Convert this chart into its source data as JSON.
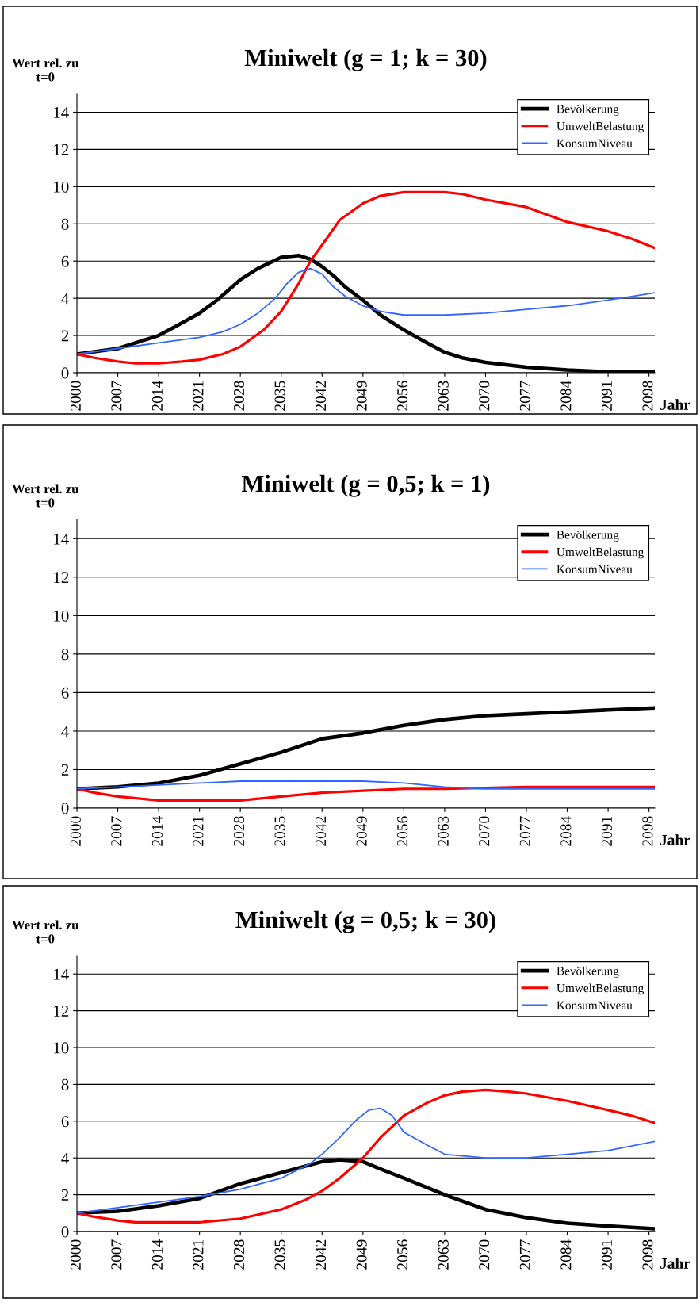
{
  "chart_data": [
    {
      "type": "line",
      "title": "Miniwelt (g = 1; k = 30)",
      "ylabel": "Wert rel. zu\nt=0",
      "xlabel": "Jahr",
      "xlim": [
        2000,
        2099
      ],
      "xticks": [
        2000,
        2007,
        2014,
        2021,
        2028,
        2035,
        2042,
        2049,
        2056,
        2063,
        2070,
        2077,
        2084,
        2091,
        2098
      ],
      "ylim": [
        0,
        15
      ],
      "yticks": [
        0,
        2,
        4,
        6,
        8,
        10,
        12,
        14
      ],
      "grid": "y",
      "legend": "top right",
      "marker": "none",
      "line_style": "solid",
      "series": [
        {
          "name": "Bevölkerung",
          "color": "#000000",
          "x": [
            2000,
            2007,
            2014,
            2017,
            2021,
            2024,
            2028,
            2031,
            2035,
            2038,
            2040,
            2042,
            2044,
            2046,
            2049,
            2052,
            2056,
            2060,
            2063,
            2066,
            2070,
            2077,
            2084,
            2091,
            2099
          ],
          "values": [
            1,
            1.3,
            2.0,
            2.5,
            3.2,
            3.9,
            5.0,
            5.6,
            6.2,
            6.3,
            6.1,
            5.7,
            5.2,
            4.6,
            3.9,
            3.1,
            2.3,
            1.6,
            1.1,
            0.8,
            0.55,
            0.3,
            0.15,
            0.05,
            0.05
          ]
        },
        {
          "name": "UmweltBelastung",
          "color": "#ff0000",
          "x": [
            2000,
            2003,
            2007,
            2010,
            2014,
            2018,
            2021,
            2025,
            2028,
            2032,
            2035,
            2038,
            2040,
            2043,
            2045,
            2049,
            2052,
            2056,
            2063,
            2066,
            2070,
            2077,
            2084,
            2091,
            2095,
            2099
          ],
          "values": [
            1,
            0.8,
            0.6,
            0.5,
            0.5,
            0.6,
            0.7,
            1.0,
            1.4,
            2.3,
            3.3,
            4.8,
            6.0,
            7.3,
            8.2,
            9.1,
            9.5,
            9.7,
            9.7,
            9.6,
            9.3,
            8.9,
            8.1,
            7.6,
            7.2,
            6.7
          ]
        },
        {
          "name": "KonsumNiveau",
          "color": "#3366ff",
          "x": [
            2000,
            2007,
            2014,
            2021,
            2025,
            2028,
            2031,
            2034,
            2036,
            2038,
            2040,
            2042,
            2044,
            2046,
            2049,
            2052,
            2056,
            2063,
            2070,
            2077,
            2084,
            2091,
            2095,
            2099
          ],
          "values": [
            1,
            1.3,
            1.6,
            1.9,
            2.2,
            2.6,
            3.2,
            4.0,
            4.8,
            5.4,
            5.6,
            5.3,
            4.6,
            4.1,
            3.6,
            3.3,
            3.1,
            3.1,
            3.2,
            3.4,
            3.6,
            3.9,
            4.1,
            4.3
          ]
        }
      ]
    },
    {
      "type": "line",
      "title": "Miniwelt (g = 0,5; k = 1)",
      "ylabel": "Wert rel. zu\nt=0",
      "xlabel": "Jahr",
      "xlim": [
        2000,
        2099
      ],
      "xticks": [
        2000,
        2007,
        2014,
        2021,
        2028,
        2035,
        2042,
        2049,
        2056,
        2063,
        2070,
        2077,
        2084,
        2091,
        2098
      ],
      "ylim": [
        0,
        15
      ],
      "yticks": [
        0,
        2,
        4,
        6,
        8,
        10,
        12,
        14
      ],
      "grid": "y",
      "legend": "top right",
      "marker": "none",
      "line_style": "solid",
      "series": [
        {
          "name": "Bevölkerung",
          "color": "#000000",
          "x": [
            2000,
            2007,
            2014,
            2021,
            2028,
            2035,
            2042,
            2049,
            2056,
            2063,
            2070,
            2077,
            2084,
            2091,
            2099
          ],
          "values": [
            1,
            1.1,
            1.3,
            1.7,
            2.3,
            2.9,
            3.6,
            3.9,
            4.3,
            4.6,
            4.8,
            4.9,
            5.0,
            5.1,
            5.2
          ]
        },
        {
          "name": "UmweltBelastung",
          "color": "#ff0000",
          "x": [
            2000,
            2003,
            2007,
            2014,
            2028,
            2035,
            2042,
            2049,
            2056,
            2063,
            2077,
            2099
          ],
          "values": [
            1,
            0.8,
            0.6,
            0.4,
            0.4,
            0.6,
            0.8,
            0.9,
            1.0,
            1.0,
            1.1,
            1.1
          ]
        },
        {
          "name": "KonsumNiveau",
          "color": "#3366ff",
          "x": [
            2000,
            2007,
            2014,
            2021,
            2028,
            2035,
            2042,
            2049,
            2056,
            2063,
            2070,
            2077,
            2099
          ],
          "values": [
            1,
            1.1,
            1.2,
            1.3,
            1.4,
            1.4,
            1.4,
            1.4,
            1.3,
            1.1,
            1.0,
            1.0,
            1.0
          ]
        }
      ]
    },
    {
      "type": "line",
      "title": "Miniwelt (g = 0,5; k = 30)",
      "ylabel": "Wert rel. zu\nt=0",
      "xlabel": "Jahr",
      "xlim": [
        2000,
        2099
      ],
      "xticks": [
        2000,
        2007,
        2014,
        2021,
        2028,
        2035,
        2042,
        2049,
        2056,
        2063,
        2070,
        2077,
        2084,
        2091,
        2098
      ],
      "ylim": [
        0,
        15
      ],
      "yticks": [
        0,
        2,
        4,
        6,
        8,
        10,
        12,
        14
      ],
      "grid": "y",
      "legend": "top right",
      "marker": "none",
      "line_style": "solid",
      "series": [
        {
          "name": "Bevölkerung",
          "color": "#000000",
          "x": [
            2000,
            2007,
            2014,
            2021,
            2028,
            2035,
            2042,
            2045,
            2049,
            2052,
            2056,
            2063,
            2070,
            2077,
            2084,
            2091,
            2099
          ],
          "values": [
            1,
            1.1,
            1.4,
            1.8,
            2.6,
            3.2,
            3.8,
            3.9,
            3.8,
            3.4,
            2.9,
            2.0,
            1.2,
            0.75,
            0.45,
            0.3,
            0.15
          ]
        },
        {
          "name": "UmweltBelastung",
          "color": "#ff0000",
          "x": [
            2000,
            2003,
            2007,
            2010,
            2021,
            2028,
            2035,
            2039,
            2042,
            2045,
            2049,
            2052,
            2056,
            2060,
            2063,
            2066,
            2070,
            2074,
            2077,
            2084,
            2091,
            2095,
            2099
          ],
          "values": [
            1,
            0.8,
            0.6,
            0.5,
            0.5,
            0.7,
            1.2,
            1.7,
            2.2,
            2.9,
            4.0,
            5.1,
            6.3,
            7.0,
            7.4,
            7.6,
            7.7,
            7.6,
            7.5,
            7.1,
            6.6,
            6.3,
            5.9
          ]
        },
        {
          "name": "KonsumNiveau",
          "color": "#3366ff",
          "x": [
            2000,
            2007,
            2014,
            2021,
            2028,
            2035,
            2040,
            2042,
            2045,
            2048,
            2050,
            2052,
            2054,
            2056,
            2060,
            2063,
            2070,
            2077,
            2084,
            2091,
            2099
          ],
          "values": [
            1,
            1.3,
            1.6,
            1.9,
            2.3,
            2.9,
            3.7,
            4.2,
            5.1,
            6.1,
            6.6,
            6.7,
            6.3,
            5.4,
            4.7,
            4.2,
            4.0,
            4.0,
            4.2,
            4.4,
            4.9
          ]
        }
      ]
    }
  ]
}
